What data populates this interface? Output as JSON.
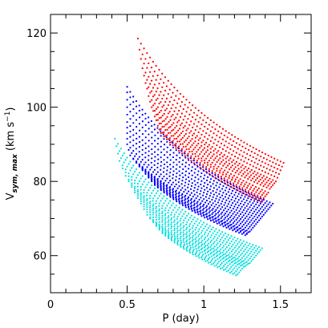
{
  "chart_data": {
    "type": "scatter",
    "title": "",
    "xlabel": "P (day)",
    "ylabel_main": "V",
    "ylabel_sub": "sym, max",
    "ylabel_unit": "(km s",
    "ylabel_unit_sup": "−1",
    "ylabel_unit_close": ")",
    "xlim": [
      0,
      1.7
    ],
    "ylim": [
      50,
      125
    ],
    "x_major_ticks": [
      0,
      0.5,
      1,
      1.5
    ],
    "x_tick_labels": [
      "0",
      "0.5",
      "1",
      "1.5"
    ],
    "y_major_ticks": [
      60,
      80,
      100,
      120
    ],
    "y_tick_labels": [
      "60",
      "80",
      "100",
      "120"
    ],
    "grid": false,
    "legend": "none",
    "series": [
      {
        "color": "#ff0000",
        "p_start": [
          0.57,
          0.58,
          0.59,
          0.6,
          0.61,
          0.62,
          0.63,
          0.64,
          0.65,
          0.66,
          0.67,
          0.68,
          0.69,
          0.7,
          0.71,
          0.72
        ],
        "p_end": [
          1.52,
          1.51,
          1.5,
          1.49,
          1.48,
          1.47,
          1.46,
          1.45,
          1.44,
          1.43,
          1.42,
          1.41,
          1.4,
          1.39,
          1.38,
          1.37
        ],
        "v_start": [
          118.5,
          115.5,
          113.0,
          110.5,
          108.5,
          106.5,
          105.0,
          103.0,
          101.5,
          100.0,
          99.0,
          97.5,
          96.5,
          95.0,
          94.0,
          93.0
        ],
        "v_end": [
          85.0,
          84.0,
          83.0,
          82.0,
          81.0,
          80.0,
          79.5,
          79.0,
          78.5,
          78.0,
          77.0,
          76.5,
          76.0,
          75.5,
          75.0,
          74.5
        ]
      },
      {
        "color": "#0000ff",
        "p_start": [
          0.5,
          0.5,
          0.5,
          0.5,
          0.5,
          0.5,
          0.5,
          0.5,
          0.5,
          0.5,
          0.51,
          0.52,
          0.54,
          0.56,
          0.58,
          0.6,
          0.62,
          0.64,
          0.66,
          0.68
        ],
        "p_end": [
          1.45,
          1.44,
          1.43,
          1.42,
          1.41,
          1.4,
          1.39,
          1.38,
          1.37,
          1.36,
          1.35,
          1.34,
          1.33,
          1.32,
          1.31,
          1.3,
          1.29,
          1.28,
          1.28,
          1.27
        ],
        "v_start": [
          105.5,
          104.0,
          102.0,
          100.0,
          98.0,
          96.0,
          94.5,
          93.0,
          91.5,
          90.0,
          88.5,
          87.0,
          86.0,
          85.0,
          84.0,
          83.0,
          82.0,
          81.0,
          80.0,
          79.0
        ],
        "v_end": [
          74.0,
          73.5,
          73.0,
          72.5,
          72.0,
          71.5,
          71.0,
          70.5,
          70.0,
          69.5,
          69.0,
          68.5,
          68.0,
          67.5,
          67.0,
          66.5,
          66.3,
          66.0,
          65.8,
          65.5
        ]
      },
      {
        "color": "#00e0e0",
        "p_start": [
          0.42,
          0.43,
          0.44,
          0.45,
          0.47,
          0.49,
          0.51,
          0.53,
          0.55,
          0.57,
          0.59,
          0.61,
          0.63,
          0.65,
          0.67,
          0.69,
          0.71,
          0.73
        ],
        "p_end": [
          1.38,
          1.37,
          1.36,
          1.35,
          1.34,
          1.33,
          1.32,
          1.31,
          1.3,
          1.29,
          1.28,
          1.27,
          1.26,
          1.25,
          1.24,
          1.23,
          1.22,
          1.21
        ],
        "v_start": [
          91.5,
          89.5,
          87.5,
          85.5,
          83.5,
          81.5,
          80.0,
          78.5,
          77.0,
          75.5,
          74.0,
          72.5,
          71.0,
          70.0,
          69.0,
          68.0,
          67.0,
          66.0
        ],
        "v_end": [
          62.0,
          61.5,
          61.0,
          60.5,
          60.0,
          59.5,
          59.0,
          58.5,
          58.0,
          57.8,
          57.5,
          57.2,
          57.0,
          56.5,
          56.0,
          55.5,
          55.0,
          54.7
        ]
      }
    ]
  }
}
